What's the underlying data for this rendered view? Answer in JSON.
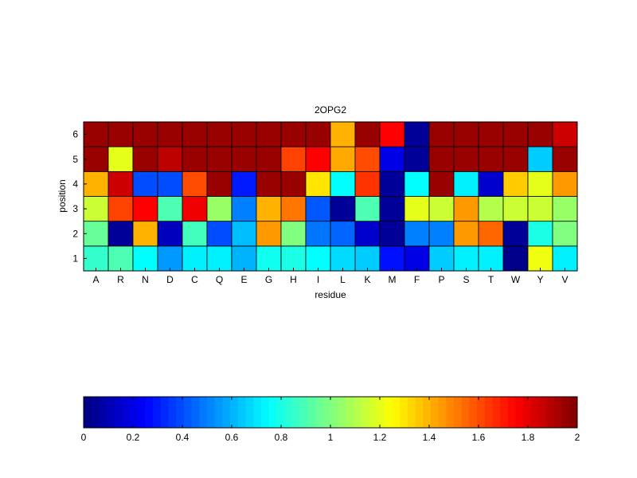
{
  "chart_data": {
    "type": "heatmap",
    "title": "2OPG2",
    "xlabel": "residue",
    "ylabel": "position",
    "x_categories": [
      "A",
      "R",
      "N",
      "D",
      "C",
      "Q",
      "E",
      "G",
      "H",
      "I",
      "L",
      "K",
      "M",
      "F",
      "P",
      "S",
      "T",
      "W",
      "Y",
      "V"
    ],
    "y_categories": [
      "1",
      "2",
      "3",
      "4",
      "5",
      "6"
    ],
    "value_range": [
      0,
      2
    ],
    "colormap": "jet",
    "colorbar": {
      "orientation": "horizontal",
      "placement": "bottom",
      "ticks": [
        0,
        0.2,
        0.4,
        0.6,
        0.8,
        1,
        1.2,
        1.4,
        1.6,
        1.8,
        2
      ],
      "tick_labels": [
        "0",
        "0.2",
        "0.4",
        "0.6",
        "0.8",
        "1",
        "1.2",
        "1.4",
        "1.6",
        "1.8",
        "2"
      ]
    },
    "values": [
      [
        0.85,
        0.9,
        0.75,
        0.55,
        0.72,
        0.72,
        0.6,
        0.78,
        0.8,
        0.75,
        0.68,
        0.65,
        0.28,
        0.2,
        0.65,
        0.72,
        0.72,
        0.02,
        1.22,
        0.72
      ],
      [
        0.95,
        0.05,
        1.4,
        0.12,
        0.88,
        0.4,
        0.62,
        1.45,
        1.0,
        0.48,
        0.45,
        0.15,
        0.05,
        0.5,
        0.5,
        1.45,
        1.55,
        0.05,
        0.8,
        1.0
      ],
      [
        1.15,
        1.62,
        1.75,
        0.9,
        1.78,
        1.05,
        0.5,
        1.4,
        1.52,
        0.42,
        0.05,
        0.9,
        0.05,
        1.2,
        1.15,
        1.45,
        1.1,
        1.15,
        1.15,
        1.05
      ],
      [
        1.4,
        1.85,
        0.4,
        0.4,
        1.6,
        1.95,
        0.3,
        1.95,
        1.95,
        1.3,
        0.75,
        1.65,
        0.05,
        0.75,
        1.95,
        0.72,
        0.15,
        1.35,
        1.2,
        1.45
      ],
      [
        1.95,
        1.2,
        1.95,
        1.88,
        1.95,
        1.95,
        1.95,
        1.95,
        1.62,
        1.75,
        1.42,
        1.6,
        0.2,
        0.05,
        1.95,
        1.95,
        1.95,
        1.95,
        0.65,
        1.95
      ],
      [
        1.95,
        1.95,
        1.95,
        1.95,
        1.95,
        1.95,
        1.95,
        1.95,
        1.95,
        1.95,
        1.4,
        1.95,
        1.75,
        0.05,
        1.95,
        1.95,
        1.95,
        1.95,
        1.95,
        1.85
      ]
    ]
  }
}
